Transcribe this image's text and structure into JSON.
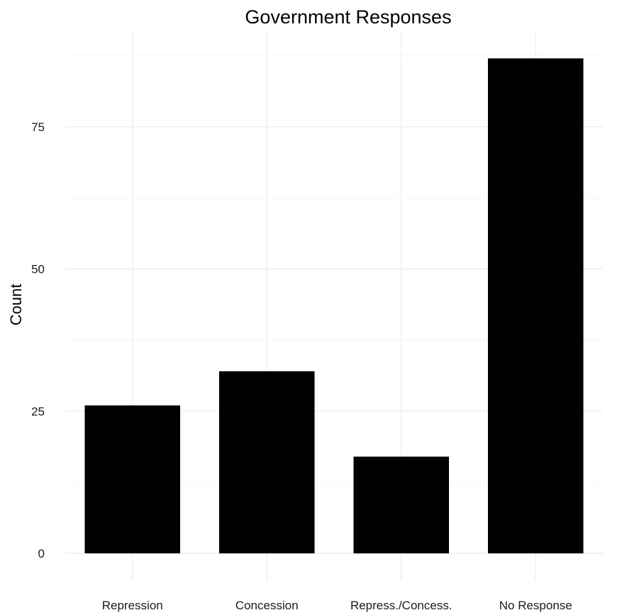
{
  "chart_data": {
    "type": "bar",
    "title": "Government Responses",
    "xlabel": "",
    "ylabel": "Count",
    "categories": [
      "Repression",
      "Concession",
      "Repress./Concess.",
      "No Response"
    ],
    "values": [
      26,
      32,
      17,
      87
    ],
    "ylim": [
      0,
      88
    ],
    "yticks": [
      0,
      25,
      50,
      75
    ],
    "ytick_labels": [
      "0",
      "25",
      "50",
      "75"
    ],
    "grid": true,
    "legend": false,
    "bar_color": "#000000",
    "grid_color": "#ebebeb"
  }
}
